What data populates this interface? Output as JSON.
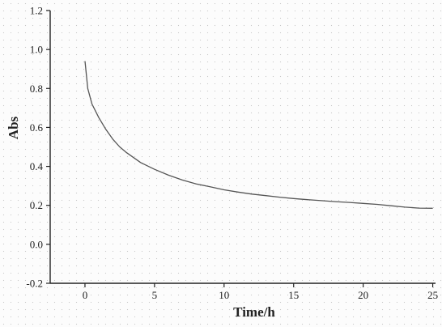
{
  "chart_data": {
    "type": "line",
    "xlabel": "Time/h",
    "ylabel": "Abs",
    "xlim": [
      -2.5,
      25.2
    ],
    "ylim": [
      -0.2,
      1.2
    ],
    "x_ticks": [
      "0",
      "5",
      "10",
      "15",
      "20",
      "25"
    ],
    "y_ticks": [
      "-0.2",
      "0.0",
      "0.2",
      "0.4",
      "0.6",
      "0.8",
      "1.0",
      "1.2"
    ],
    "grid": false,
    "series": [
      {
        "color": "#555555",
        "x": [
          0,
          0.2,
          0.5,
          1,
          1.5,
          2,
          2.5,
          3,
          4,
          5,
          6,
          7,
          8,
          9,
          10,
          11,
          12,
          13,
          14,
          15,
          16,
          17,
          18,
          19,
          20,
          21,
          22,
          23,
          24,
          25
        ],
        "y": [
          0.94,
          0.8,
          0.72,
          0.65,
          0.59,
          0.54,
          0.5,
          0.47,
          0.42,
          0.385,
          0.355,
          0.33,
          0.31,
          0.295,
          0.28,
          0.268,
          0.258,
          0.25,
          0.242,
          0.235,
          0.229,
          0.224,
          0.219,
          0.215,
          0.21,
          0.205,
          0.198,
          0.191,
          0.186,
          0.185
        ]
      }
    ]
  }
}
